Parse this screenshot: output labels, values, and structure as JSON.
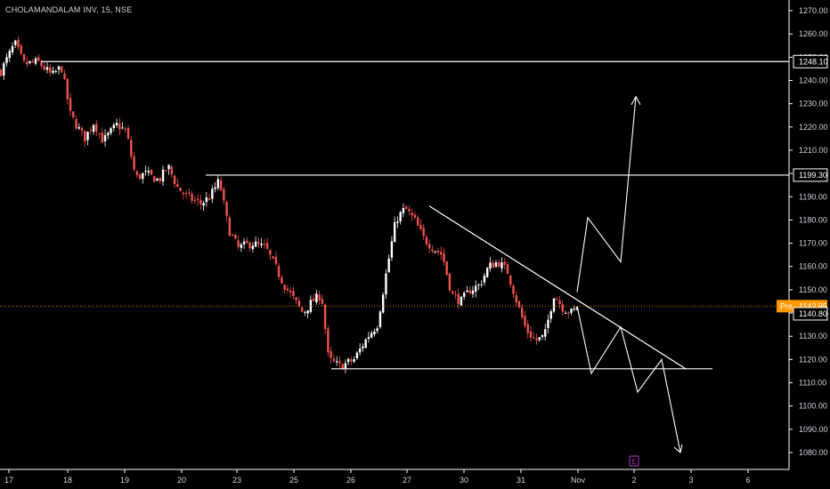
{
  "header": {
    "symbol_title": "CHOLAMANDALAM INV, 15, NSE"
  },
  "colors": {
    "background": "#000000",
    "bull": "#ffffff",
    "bear": "#ef5350",
    "axis_text": "#d1d4dc",
    "axis_line": "#ffffff",
    "pre_tag": "#ff9800",
    "level_line": "#ffffff",
    "badge": "#9c27b0"
  },
  "chart_data": {
    "type": "candlestick",
    "title": "CHOLAMANDALAM INV, 15, NSE",
    "ylim": [
      1075,
      1275
    ],
    "yticks": [
      1080,
      1090,
      1100,
      1110,
      1120,
      1130,
      1140,
      1150,
      1160,
      1170,
      1180,
      1190,
      1200,
      1210,
      1220,
      1230,
      1240,
      1250,
      1260,
      1270
    ],
    "x_labels": [
      "17",
      "18",
      "19",
      "20",
      "23",
      "25",
      "26",
      "27",
      "30",
      "31",
      "Nov",
      "2",
      "3",
      "6"
    ],
    "candle_count": 200,
    "path_points": [
      [
        0,
        1244
      ],
      [
        6,
        1256
      ],
      [
        10,
        1247
      ],
      [
        16,
        1248
      ],
      [
        22,
        1242
      ],
      [
        26,
        1246
      ],
      [
        30,
        1225
      ],
      [
        36,
        1215
      ],
      [
        40,
        1222
      ],
      [
        44,
        1214
      ],
      [
        50,
        1221
      ],
      [
        54,
        1218
      ],
      [
        58,
        1198
      ],
      [
        62,
        1200
      ],
      [
        68,
        1197
      ],
      [
        72,
        1203
      ],
      [
        76,
        1194
      ],
      [
        80,
        1190
      ],
      [
        86,
        1187
      ],
      [
        90,
        1190
      ],
      [
        94,
        1197
      ],
      [
        98,
        1176
      ],
      [
        102,
        1168
      ],
      [
        108,
        1170
      ],
      [
        114,
        1168
      ],
      [
        118,
        1160
      ],
      [
        122,
        1152
      ],
      [
        126,
        1146
      ],
      [
        130,
        1140
      ],
      [
        134,
        1145
      ],
      [
        138,
        1148
      ],
      [
        141,
        1120
      ],
      [
        146,
        1117
      ],
      [
        152,
        1120
      ],
      [
        158,
        1130
      ],
      [
        162,
        1135
      ],
      [
        166,
        1158
      ],
      [
        170,
        1180
      ],
      [
        174,
        1185
      ],
      [
        178,
        1180
      ],
      [
        182,
        1172
      ],
      [
        186,
        1168
      ],
      [
        190,
        1165
      ],
      [
        194,
        1148
      ],
      [
        198,
        1145
      ],
      [
        202,
        1150
      ],
      [
        206,
        1152
      ],
      [
        210,
        1160
      ],
      [
        214,
        1162
      ],
      [
        218,
        1158
      ],
      [
        222,
        1145
      ],
      [
        226,
        1133
      ],
      [
        230,
        1128
      ],
      [
        234,
        1130
      ],
      [
        238,
        1148
      ],
      [
        242,
        1142
      ],
      [
        246,
        1140
      ],
      [
        248,
        1143
      ]
    ],
    "levels": [
      {
        "price": 1248.1,
        "label": "1248.10"
      },
      {
        "price": 1199.3,
        "label": "1199.30"
      }
    ],
    "support_line": {
      "price": 1116,
      "from_day": "26",
      "to_day": "6"
    },
    "resistance_trendline": {
      "from": [
        178,
        1186
      ],
      "to_label_x": "3",
      "to_price": 1116
    },
    "current_price": {
      "tag": "Pre",
      "value": "1142.95",
      "price": 1142.95
    },
    "last_close": {
      "value": "1140.80",
      "price": 1140.8
    },
    "projection_bull": [
      [
        1149,
        "Nov"
      ],
      [
        1181,
        "Nov+"
      ],
      [
        1162,
        "2-"
      ],
      [
        1233,
        "2"
      ]
    ],
    "projection_bear": [
      [
        1143,
        "Nov"
      ],
      [
        1114,
        "Nov+"
      ],
      [
        1134,
        "2-"
      ],
      [
        1106,
        "2"
      ],
      [
        1120,
        "3-"
      ],
      [
        1080,
        "3"
      ]
    ],
    "event_badge": "E",
    "grid": false,
    "legend": "none"
  }
}
